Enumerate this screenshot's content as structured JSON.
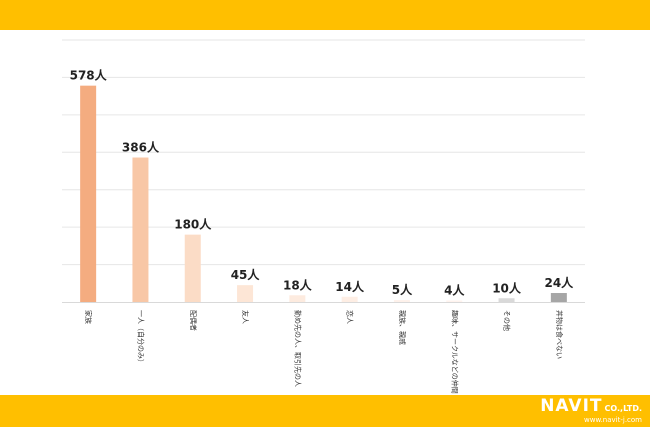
{
  "colors": {
    "band": "#ffbf00",
    "grid": "#e6e6e6",
    "axis": "#d9d9d9",
    "bars": [
      "#f4ac80",
      "#f8c7a6",
      "#fbdcc6",
      "#fde6d6",
      "#fdebdf",
      "#feeee4",
      "#fef1ea",
      "#fff3ee",
      "#d9d9d9",
      "#a6a6a6"
    ]
  },
  "brand": {
    "name": "NAVIT",
    "suffix": "CO.,LTD.",
    "url": "www.navit-j.com"
  },
  "chart_data": {
    "type": "bar",
    "categories": [
      "家族",
      "一人（自分のみ）",
      "配偶者",
      "友人",
      "勤め先の人、取引先の人",
      "恋人",
      "親族、親戚",
      "趣味、サークルなどの仲間",
      "その他",
      "丼物は食べない"
    ],
    "values": [
      578,
      386,
      180,
      45,
      18,
      14,
      5,
      4,
      10,
      24
    ],
    "value_labels": [
      "578人",
      "386人",
      "180人",
      "45人",
      "18人",
      "14人",
      "5人",
      "4人",
      "10人",
      "24人"
    ],
    "ylim": [
      0,
      700
    ],
    "grid": true,
    "title": "",
    "xlabel": "",
    "ylabel": ""
  }
}
